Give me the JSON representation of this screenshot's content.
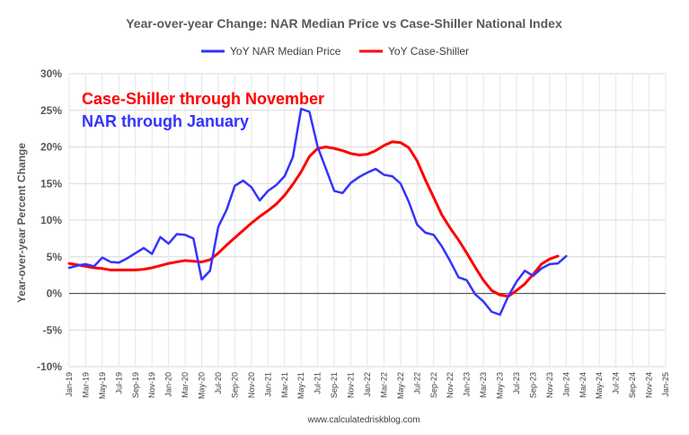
{
  "chart_data": {
    "type": "line",
    "title": "Year-over-year Change: NAR Median Price vs Case-Shiller National Index",
    "ylabel": "Year-over-year Percent Change",
    "xlabel": "",
    "source": "www.calculatedriskblog.com",
    "ylim": [
      -10,
      30
    ],
    "yticks": [
      30,
      25,
      20,
      15,
      10,
      5,
      0,
      -5,
      -10
    ],
    "ytick_labels": [
      "30%",
      "25%",
      "20%",
      "15%",
      "10%",
      "5%",
      "0%",
      "-5%",
      "-10%"
    ],
    "xlim": [
      "Jan-19",
      "Jan-25"
    ],
    "xtick_labels": [
      "Jan-19",
      "Mar-19",
      "May-19",
      "Jul-19",
      "Sep-19",
      "Nov-19",
      "Jan-20",
      "Mar-20",
      "May-20",
      "Jul-20",
      "Sep-20",
      "Nov-20",
      "Jan-21",
      "Mar-21",
      "May-21",
      "Jul-21",
      "Sep-21",
      "Nov-21",
      "Jan-22",
      "Mar-22",
      "May-22",
      "Jul-22",
      "Sep-22",
      "Nov-22",
      "Jan-23",
      "Mar-23",
      "May-23",
      "Jul-23",
      "Sep-23",
      "Nov-23",
      "Jan-24",
      "Mar-24",
      "May-24",
      "Jul-24",
      "Sep-24",
      "Nov-24",
      "Jan-25"
    ],
    "grid": true,
    "legend_position": "top",
    "annotations": [
      {
        "text": "Case-Shiller through November",
        "color": "#ff0000"
      },
      {
        "text": "NAR through January",
        "color": "#3333ff"
      }
    ],
    "series": [
      {
        "name": "YoY NAR Median Price",
        "color": "#3333ff",
        "start": "Jan-19",
        "values": [
          3.5,
          3.8,
          4.0,
          3.7,
          4.9,
          4.3,
          4.2,
          4.8,
          5.5,
          6.2,
          5.4,
          7.7,
          6.8,
          8.1,
          8.0,
          7.5,
          1.9,
          3.1,
          9.1,
          11.4,
          14.7,
          15.4,
          14.5,
          12.7,
          14.0,
          14.8,
          16.0,
          18.6,
          25.2,
          24.8,
          20.0,
          17.0,
          14.0,
          13.7,
          15.1,
          15.9,
          16.5,
          17.0,
          16.2,
          16.0,
          15.0,
          12.5,
          9.4,
          8.3,
          8.0,
          6.4,
          4.4,
          2.2,
          1.8,
          -0.1,
          -1.1,
          -2.5,
          -2.9,
          -0.4,
          1.6,
          3.1,
          2.4,
          3.4,
          4.0,
          4.1,
          5.1
        ]
      },
      {
        "name": "YoY Case-Shiller",
        "color": "#ff0000",
        "start": "Jan-19",
        "values": [
          4.1,
          3.9,
          3.7,
          3.5,
          3.4,
          3.2,
          3.2,
          3.2,
          3.2,
          3.3,
          3.5,
          3.8,
          4.1,
          4.3,
          4.5,
          4.4,
          4.3,
          4.6,
          5.5,
          6.6,
          7.6,
          8.6,
          9.6,
          10.5,
          11.3,
          12.2,
          13.4,
          14.9,
          16.6,
          18.7,
          19.8,
          20.0,
          19.8,
          19.5,
          19.1,
          18.9,
          19.0,
          19.5,
          20.2,
          20.7,
          20.6,
          19.9,
          18.1,
          15.5,
          13.1,
          10.7,
          8.9,
          7.3,
          5.5,
          3.6,
          1.8,
          0.4,
          -0.2,
          -0.4,
          0.4,
          1.3,
          2.6,
          4.0,
          4.7,
          5.1
        ]
      }
    ]
  }
}
